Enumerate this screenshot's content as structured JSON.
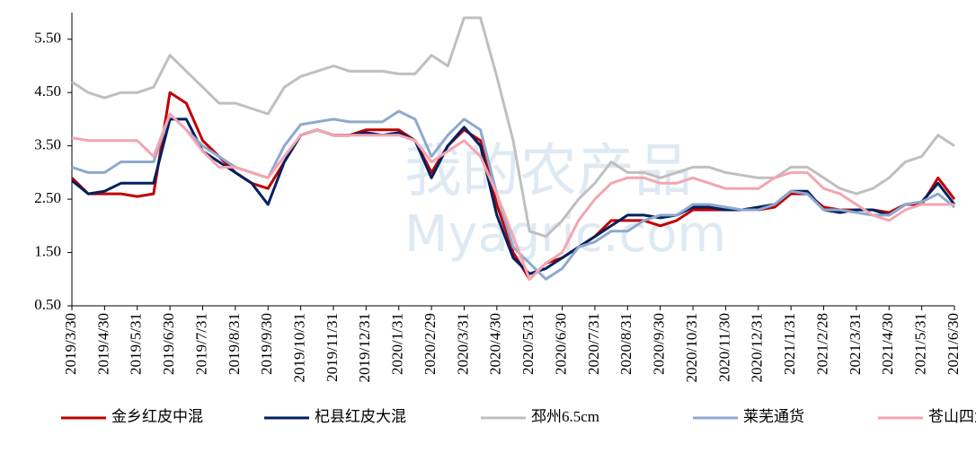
{
  "chart_data": {
    "type": "line",
    "watermark": "我的农产品",
    "watermark_sub": "Myagric.com",
    "categories": [
      "2019/3/30",
      null,
      "2019/4/30",
      null,
      "2019/5/31",
      null,
      "2019/6/30",
      null,
      "2019/7/31",
      null,
      "2019/8/31",
      null,
      "2019/9/30",
      null,
      "2019/10/31",
      null,
      "2019/11/31",
      null,
      "2019/12/31",
      null,
      "2020/1/31",
      null,
      "2020/2/29",
      null,
      "2020/3/31",
      null,
      "2020/4/30",
      null,
      "2020/5/31",
      null,
      "2020/6/30",
      null,
      "2020/7/31",
      null,
      "2020/8/31",
      null,
      "2020/9/30",
      null,
      "2020/10/31",
      null,
      "2020/11/30",
      null,
      "2020/12/31",
      null,
      "2021/1/31",
      null,
      "2021/2/28",
      null,
      "2021/3/31",
      null,
      "2021/4/30",
      null,
      "2021/5/31",
      null,
      "2021/6/30"
    ],
    "series": [
      {
        "name": "金乡红皮中混",
        "color": "#c00000",
        "values": [
          2.9,
          2.6,
          2.6,
          2.6,
          2.55,
          2.6,
          4.5,
          4.3,
          3.6,
          3.3,
          3.0,
          2.8,
          2.7,
          3.2,
          3.7,
          3.8,
          3.7,
          3.7,
          3.8,
          3.8,
          3.8,
          3.6,
          3.0,
          3.5,
          3.8,
          3.6,
          2.4,
          1.5,
          1.0,
          1.3,
          1.4,
          1.6,
          1.8,
          2.1,
          2.1,
          2.1,
          2.0,
          2.1,
          2.3,
          2.3,
          2.3,
          2.3,
          2.3,
          2.35,
          2.6,
          2.6,
          2.35,
          2.3,
          2.3,
          2.3,
          2.25,
          2.4,
          2.4,
          2.9,
          2.5
        ]
      },
      {
        "name": "杞县红皮大混",
        "color": "#002060",
        "values": [
          2.85,
          2.6,
          2.65,
          2.8,
          2.8,
          2.8,
          4.0,
          4.0,
          3.4,
          3.2,
          3.0,
          2.8,
          2.4,
          3.2,
          3.7,
          3.8,
          3.7,
          3.7,
          3.75,
          3.7,
          3.75,
          3.6,
          2.9,
          3.5,
          3.85,
          3.5,
          2.2,
          1.4,
          1.1,
          1.2,
          1.4,
          1.6,
          1.8,
          2.0,
          2.2,
          2.2,
          2.15,
          2.2,
          2.35,
          2.35,
          2.3,
          2.3,
          2.35,
          2.4,
          2.65,
          2.65,
          2.3,
          2.25,
          2.3,
          2.3,
          2.2,
          2.4,
          2.45,
          2.8,
          2.4
        ]
      },
      {
        "name": "邳州6.5cm",
        "color": "#bfbfbf",
        "values": [
          4.7,
          4.5,
          4.4,
          4.5,
          4.5,
          4.6,
          5.2,
          4.9,
          4.6,
          4.3,
          4.3,
          4.2,
          4.1,
          4.6,
          4.8,
          4.9,
          5.0,
          4.9,
          4.9,
          4.9,
          4.85,
          4.85,
          5.2,
          5.0,
          5.9,
          5.9,
          4.8,
          3.6,
          1.9,
          1.8,
          2.1,
          2.5,
          2.8,
          3.2,
          3.0,
          3.0,
          2.9,
          3.0,
          3.1,
          3.1,
          3.0,
          2.95,
          2.9,
          2.9,
          3.1,
          3.1,
          2.9,
          2.7,
          2.6,
          2.7,
          2.9,
          3.2,
          3.3,
          3.7,
          3.5
        ]
      },
      {
        "name": "莱芜通货",
        "color": "#8ea9cd",
        "values": [
          3.1,
          3.0,
          3.0,
          3.2,
          3.2,
          3.2,
          4.1,
          3.8,
          3.5,
          3.3,
          3.1,
          3.0,
          2.9,
          3.5,
          3.9,
          3.95,
          4.0,
          3.95,
          3.95,
          3.95,
          4.15,
          4.0,
          3.3,
          3.7,
          4.0,
          3.8,
          2.6,
          1.6,
          1.3,
          1.0,
          1.2,
          1.6,
          1.7,
          1.9,
          1.9,
          2.1,
          2.2,
          2.2,
          2.4,
          2.4,
          2.35,
          2.3,
          2.3,
          2.4,
          2.65,
          2.6,
          2.3,
          2.3,
          2.25,
          2.2,
          2.2,
          2.4,
          2.45,
          2.6,
          2.35
        ]
      },
      {
        "name": "苍山四六瓣",
        "color": "#f4a5b0",
        "values": [
          3.65,
          3.6,
          3.6,
          3.6,
          3.6,
          3.3,
          4.1,
          3.8,
          3.4,
          3.1,
          3.1,
          3.0,
          2.9,
          3.3,
          3.7,
          3.8,
          3.7,
          3.7,
          3.7,
          3.7,
          3.7,
          3.6,
          3.2,
          3.4,
          3.6,
          3.3,
          2.6,
          1.8,
          1.0,
          1.3,
          1.5,
          2.1,
          2.5,
          2.8,
          2.9,
          2.9,
          2.8,
          2.8,
          2.9,
          2.8,
          2.7,
          2.7,
          2.7,
          2.9,
          3.0,
          3.0,
          2.7,
          2.6,
          2.4,
          2.2,
          2.1,
          2.3,
          2.4,
          2.4,
          2.4
        ]
      }
    ],
    "ylim": [
      0.5,
      6.0
    ],
    "yticks": [
      {
        "value": 0.5,
        "label": "0.50"
      },
      {
        "value": 1.5,
        "label": "1.50"
      },
      {
        "value": 2.5,
        "label": "2.50"
      },
      {
        "value": 3.5,
        "label": "3.50"
      },
      {
        "value": 4.5,
        "label": "4.50"
      },
      {
        "value": 5.5,
        "label": "5.50"
      }
    ],
    "grid": false,
    "legend": "bottom"
  }
}
